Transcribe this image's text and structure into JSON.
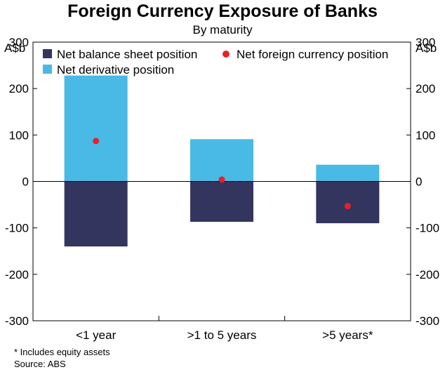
{
  "chart_data": {
    "type": "bar",
    "title": "Foreign Currency Exposure of Banks",
    "subtitle": "By maturity",
    "ylabel_left": "A$b",
    "ylabel_right": "A$b",
    "ylim": [
      -300,
      300
    ],
    "yticks": [
      300,
      200,
      100,
      0,
      -100,
      -200,
      -300
    ],
    "categories": [
      "<1 year",
      ">1 to 5 years",
      ">5 years*"
    ],
    "series": [
      {
        "name": "Net balance sheet position",
        "kind": "bar",
        "color": "#34355f",
        "values": [
          -140,
          -87,
          -90
        ]
      },
      {
        "name": "Net derivative position",
        "kind": "bar",
        "color": "#49b9e5",
        "values": [
          228,
          91,
          36
        ]
      },
      {
        "name": "Net foreign currency position",
        "kind": "dot",
        "color": "#e8202a",
        "values": [
          87,
          4,
          -53
        ]
      }
    ],
    "legend_position": "top",
    "grid": false
  },
  "footnotes": {
    "note": "*    Includes equity assets",
    "source": "Source: ABS"
  }
}
